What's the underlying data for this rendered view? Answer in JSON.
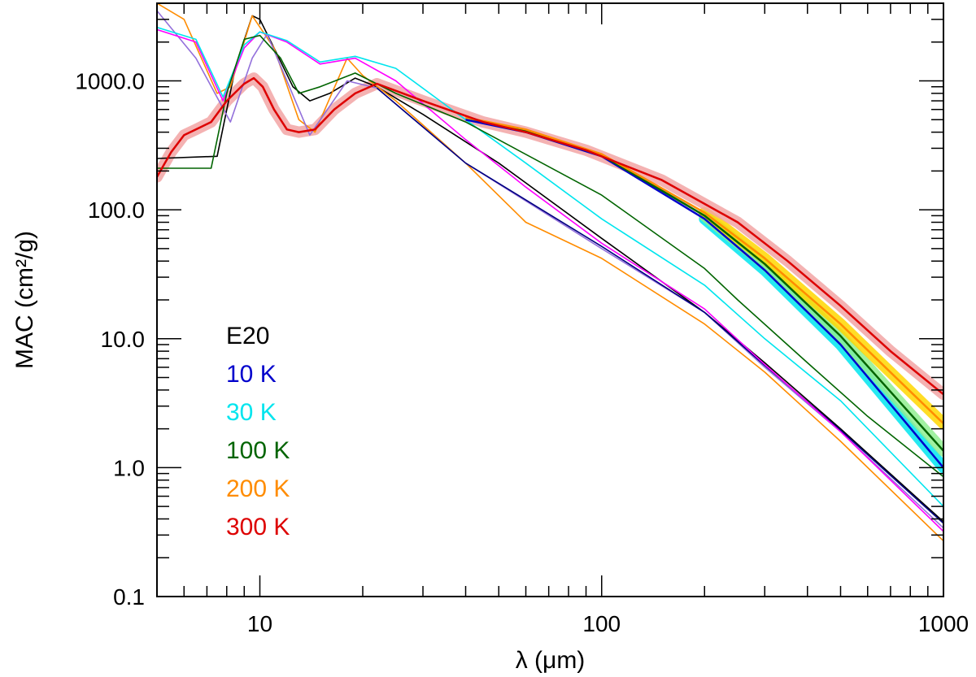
{
  "chart_data": {
    "type": "line",
    "xlabel": "λ (μm)",
    "ylabel": "MAC (cm²/g)",
    "x_scale": "log",
    "y_scale": "log",
    "xlim": [
      5,
      1000
    ],
    "ylim": [
      0.1,
      4000
    ],
    "x_tick_labels": [
      "10",
      "100",
      "1000"
    ],
    "x_tick_values": [
      10,
      100,
      1000
    ],
    "y_tick_labels": [
      "0.1",
      "1.0",
      "10.0",
      "100.0",
      "1000.0"
    ],
    "y_tick_values": [
      0.1,
      1,
      10,
      100,
      1000
    ],
    "legend_position": "lower-left",
    "legend": [
      {
        "label": "E20",
        "color": "#000000"
      },
      {
        "label": "10 K",
        "color": "#0000cc"
      },
      {
        "label": "30 K",
        "color": "#00e5ee"
      },
      {
        "label": "100 K",
        "color": "#006400"
      },
      {
        "label": "200 K",
        "color": "#ff8c00"
      },
      {
        "label": "300 K",
        "color": "#dd0000"
      }
    ],
    "series": [
      {
        "color": "#000000",
        "band": null,
        "points": [
          [
            5,
            250
          ],
          [
            7.5,
            260
          ],
          [
            8.5,
            1300
          ],
          [
            9.5,
            3200
          ],
          [
            10,
            3000
          ],
          [
            11,
            1800
          ],
          [
            12.5,
            900
          ],
          [
            14,
            700
          ],
          [
            16,
            800
          ],
          [
            19,
            1050
          ],
          [
            22,
            900
          ],
          [
            30,
            550
          ],
          [
            50,
            230
          ],
          [
            100,
            60
          ],
          [
            200,
            16
          ],
          [
            300,
            6.5
          ],
          [
            500,
            2
          ],
          [
            1000,
            0.38
          ]
        ]
      },
      {
        "color": "#ff8c00",
        "band": null,
        "points": [
          [
            5,
            4000
          ],
          [
            6,
            3000
          ],
          [
            7.5,
            800
          ],
          [
            8.2,
            900
          ],
          [
            9.5,
            3200
          ],
          [
            11,
            1800
          ],
          [
            13,
            500
          ],
          [
            14.5,
            400
          ],
          [
            18,
            1500
          ],
          [
            20,
            1100
          ],
          [
            25,
            700
          ],
          [
            40,
            230
          ],
          [
            60,
            80
          ],
          [
            100,
            42
          ],
          [
            200,
            13
          ],
          [
            300,
            5.5
          ],
          [
            500,
            1.6
          ],
          [
            1000,
            0.27
          ]
        ]
      },
      {
        "color": "#9370db",
        "band": null,
        "points": [
          [
            5,
            3500
          ],
          [
            6.5,
            1500
          ],
          [
            8.2,
            480
          ],
          [
            9.5,
            1500
          ],
          [
            10.5,
            2300
          ],
          [
            12,
            1000
          ],
          [
            14,
            380
          ],
          [
            18,
            1000
          ],
          [
            22,
            880
          ],
          [
            40,
            230
          ],
          [
            100,
            50
          ],
          [
            200,
            16
          ],
          [
            300,
            6
          ],
          [
            500,
            1.9
          ],
          [
            1000,
            0.34
          ]
        ]
      },
      {
        "color": "#000080",
        "band": null,
        "points": [
          [
            22,
            880
          ],
          [
            40,
            230
          ],
          [
            100,
            52
          ],
          [
            200,
            16
          ],
          [
            300,
            6.2
          ],
          [
            500,
            1.95
          ],
          [
            1000,
            0.37
          ]
        ]
      },
      {
        "color": "#ff00ff",
        "band": null,
        "points": [
          [
            5,
            2500
          ],
          [
            6.5,
            2000
          ],
          [
            7.8,
            700
          ],
          [
            9,
            1800
          ],
          [
            10,
            2400
          ],
          [
            12,
            2000
          ],
          [
            15,
            1350
          ],
          [
            19,
            1500
          ],
          [
            25,
            1000
          ],
          [
            40,
            350
          ],
          [
            60,
            150
          ],
          [
            100,
            55
          ],
          [
            200,
            17
          ],
          [
            300,
            6.3
          ],
          [
            500,
            1.9
          ],
          [
            1000,
            0.32
          ]
        ]
      },
      {
        "color": "#00e5ee",
        "band": null,
        "points": [
          [
            5,
            2600
          ],
          [
            6.5,
            2100
          ],
          [
            7.8,
            750
          ],
          [
            9,
            1900
          ],
          [
            10,
            2400
          ],
          [
            12,
            2050
          ],
          [
            15,
            1400
          ],
          [
            19,
            1550
          ],
          [
            25,
            1250
          ],
          [
            40,
            500
          ],
          [
            60,
            230
          ],
          [
            100,
            85
          ],
          [
            200,
            26
          ],
          [
            300,
            10
          ],
          [
            500,
            3.3
          ],
          [
            1000,
            0.5
          ]
        ]
      },
      {
        "color": "#006400",
        "band": null,
        "points": [
          [
            5,
            210
          ],
          [
            7.2,
            210
          ],
          [
            8,
            800
          ],
          [
            9,
            2100
          ],
          [
            10,
            2250
          ],
          [
            11.5,
            1500
          ],
          [
            13,
            800
          ],
          [
            15,
            900
          ],
          [
            19,
            1150
          ],
          [
            25,
            800
          ],
          [
            40,
            480
          ],
          [
            100,
            130
          ],
          [
            200,
            35
          ],
          [
            250,
            20
          ],
          [
            400,
            6.5
          ],
          [
            600,
            2.5
          ],
          [
            1000,
            0.85
          ]
        ]
      },
      {
        "color": "#0000cc",
        "band": {
          "color": "#00e5ee",
          "width": 14,
          "from": 150
        },
        "points": [
          [
            40,
            500
          ],
          [
            60,
            400
          ],
          [
            100,
            260
          ],
          [
            200,
            85
          ],
          [
            300,
            34
          ],
          [
            500,
            9
          ],
          [
            1000,
            1.0
          ]
        ]
      },
      {
        "color": "#006400",
        "band": {
          "color": "#90ee90",
          "width": 14,
          "from": 150
        },
        "points": [
          [
            40,
            520
          ],
          [
            60,
            410
          ],
          [
            100,
            265
          ],
          [
            200,
            90
          ],
          [
            300,
            38
          ],
          [
            500,
            10.5
          ],
          [
            1000,
            1.35
          ]
        ]
      },
      {
        "color": "#ff8c00",
        "band": {
          "color": "#ffd700",
          "width": 14,
          "from": 150
        },
        "points": [
          [
            40,
            520
          ],
          [
            60,
            420
          ],
          [
            100,
            270
          ],
          [
            200,
            95
          ],
          [
            300,
            42
          ],
          [
            500,
            13
          ],
          [
            1000,
            2.2
          ]
        ]
      },
      {
        "color": "#dd0000",
        "band": {
          "color": "#f2a5a5",
          "width": 14,
          "from": 5
        },
        "points": [
          [
            5,
            180
          ],
          [
            5.5,
            280
          ],
          [
            6,
            380
          ],
          [
            6.5,
            420
          ],
          [
            7.2,
            480
          ],
          [
            8,
            700
          ],
          [
            9,
            950
          ],
          [
            9.6,
            1050
          ],
          [
            10.2,
            900
          ],
          [
            11,
            600
          ],
          [
            12,
            420
          ],
          [
            13,
            400
          ],
          [
            14.5,
            420
          ],
          [
            16.5,
            600
          ],
          [
            19,
            800
          ],
          [
            22,
            950
          ],
          [
            30,
            700
          ],
          [
            45,
            480
          ],
          [
            60,
            400
          ],
          [
            90,
            290
          ],
          [
            150,
            170
          ],
          [
            250,
            80
          ],
          [
            350,
            40
          ],
          [
            500,
            18
          ],
          [
            700,
            8
          ],
          [
            1000,
            3.7
          ]
        ]
      }
    ]
  }
}
